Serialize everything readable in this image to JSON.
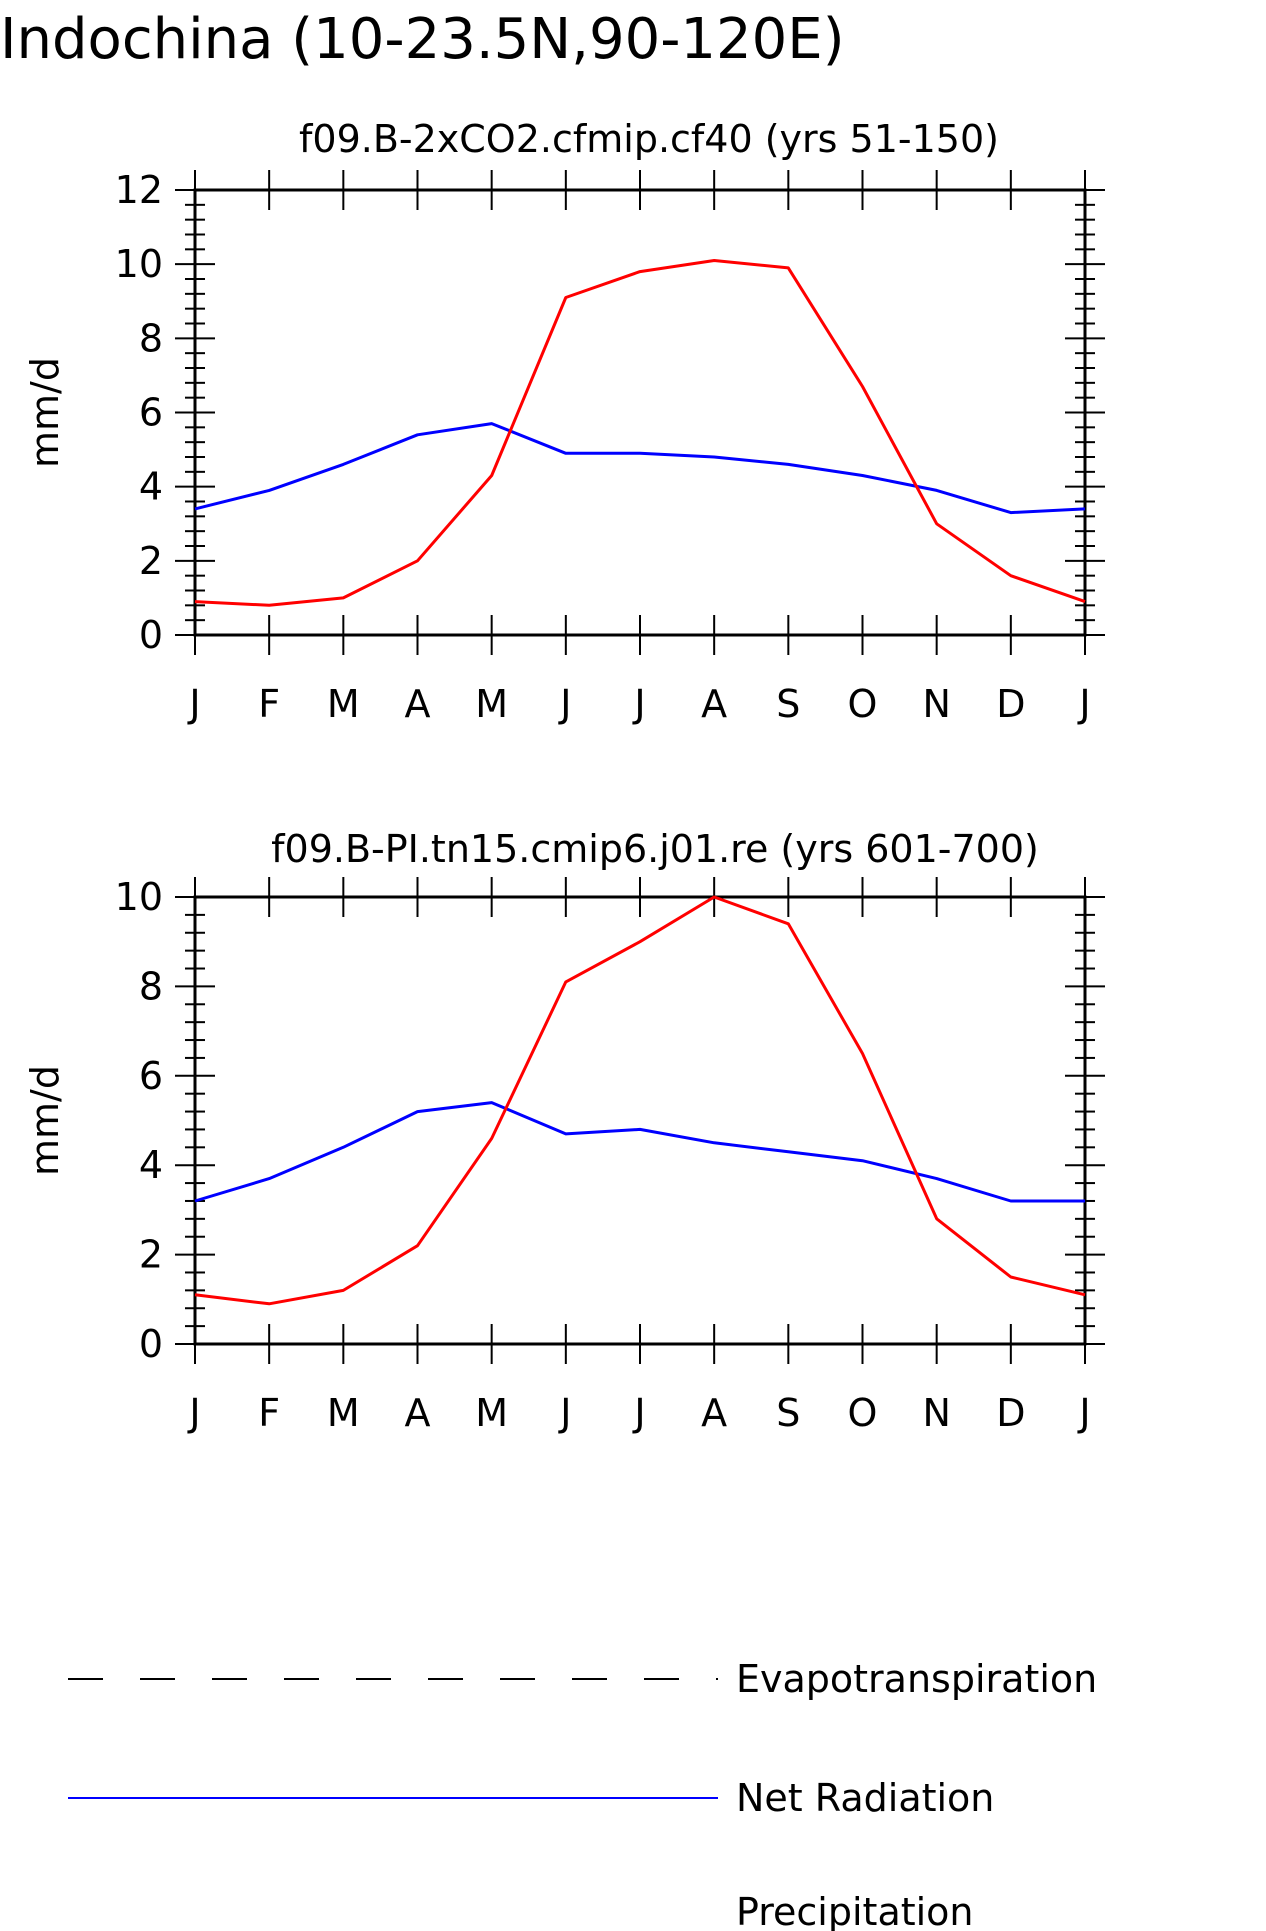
{
  "figure": {
    "title": "Indochina (10-23.5N,90-120E)"
  },
  "colors": {
    "net_radiation": "#0000ff",
    "precipitation": "#ff0000",
    "evapotranspiration": "#000000",
    "axes": "#000000"
  },
  "legend": {
    "items": [
      {
        "label": "Evapotranspiration",
        "style": "dashed",
        "color": "#000000"
      },
      {
        "label": "Net Radiation",
        "style": "solid",
        "color": "#0000ff"
      },
      {
        "label": "Precipitation",
        "style": "solid",
        "color": "#ff0000"
      }
    ]
  },
  "chart_data": [
    {
      "type": "line",
      "title": "f09.B-2xCO2.cfmip.cf40 (yrs 51-150)",
      "xlabel": "",
      "ylabel": "mm/d",
      "categories": [
        "J",
        "F",
        "M",
        "A",
        "M",
        "J",
        "J",
        "A",
        "S",
        "O",
        "N",
        "D",
        "J"
      ],
      "ylim": [
        0,
        12
      ],
      "yticks": [
        0,
        2,
        4,
        6,
        8,
        10,
        12
      ],
      "series": [
        {
          "name": "Net Radiation",
          "color": "#0000ff",
          "values": [
            3.4,
            3.9,
            4.6,
            5.4,
            5.7,
            4.9,
            4.9,
            4.8,
            4.6,
            4.3,
            3.9,
            3.3,
            3.4
          ]
        },
        {
          "name": "Precipitation",
          "color": "#ff0000",
          "values": [
            0.9,
            0.8,
            1.0,
            2.0,
            4.3,
            9.1,
            9.8,
            10.1,
            9.9,
            6.7,
            3.0,
            1.6,
            0.9
          ]
        }
      ]
    },
    {
      "type": "line",
      "title": "f09.B-PI.tn15.cmip6.j01.re (yrs 601-700)",
      "xlabel": "",
      "ylabel": "mm/d",
      "categories": [
        "J",
        "F",
        "M",
        "A",
        "M",
        "J",
        "J",
        "A",
        "S",
        "O",
        "N",
        "D",
        "J"
      ],
      "ylim": [
        0,
        10
      ],
      "yticks": [
        0,
        2,
        4,
        6,
        8,
        10
      ],
      "series": [
        {
          "name": "Net Radiation",
          "color": "#0000ff",
          "values": [
            3.2,
            3.7,
            4.4,
            5.2,
            5.4,
            4.7,
            4.8,
            4.5,
            4.3,
            4.1,
            3.7,
            3.2,
            3.2
          ]
        },
        {
          "name": "Precipitation",
          "color": "#ff0000",
          "values": [
            1.1,
            0.9,
            1.2,
            2.2,
            4.6,
            8.1,
            9.0,
            10.0,
            9.4,
            6.5,
            2.8,
            1.5,
            1.1
          ]
        }
      ]
    }
  ]
}
